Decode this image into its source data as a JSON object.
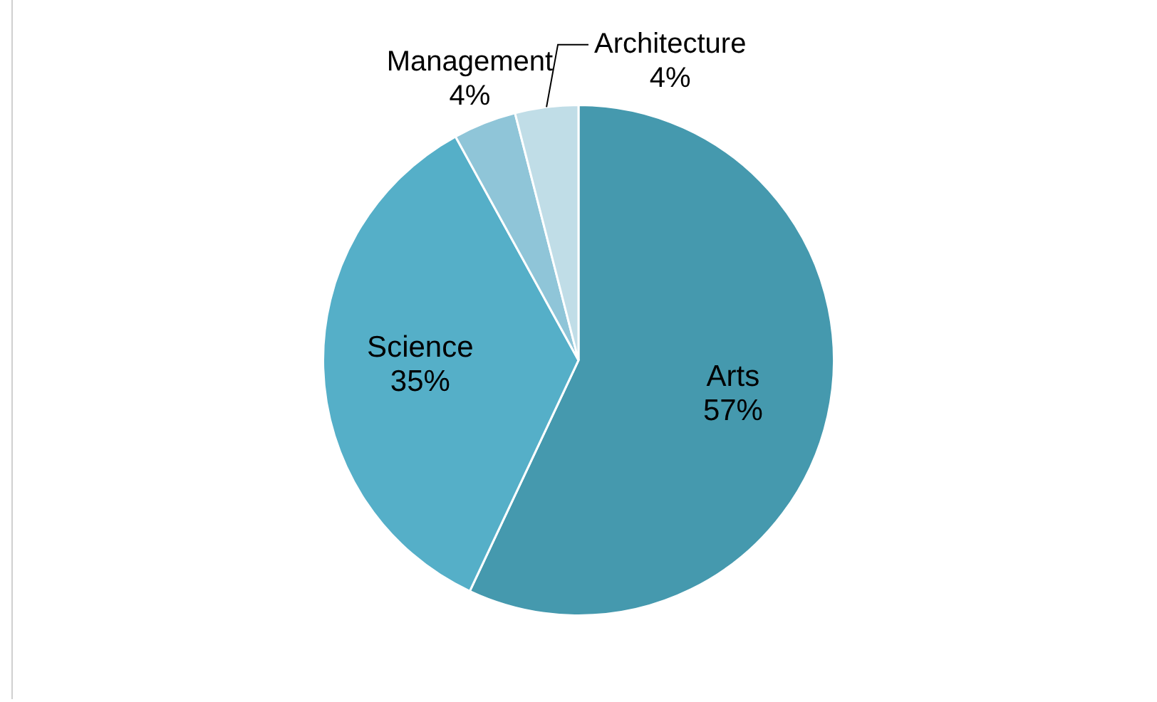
{
  "chart_data": {
    "type": "pie",
    "categories": [
      "Arts",
      "Science",
      "Management",
      "Architecture"
    ],
    "values": [
      57,
      35,
      4,
      4
    ],
    "colors": [
      "#4599ae",
      "#55afc8",
      "#8fc5d8",
      "#c0dde7"
    ],
    "value_labels": [
      "57%",
      "35%",
      "4%",
      "4%"
    ],
    "legend": false
  }
}
